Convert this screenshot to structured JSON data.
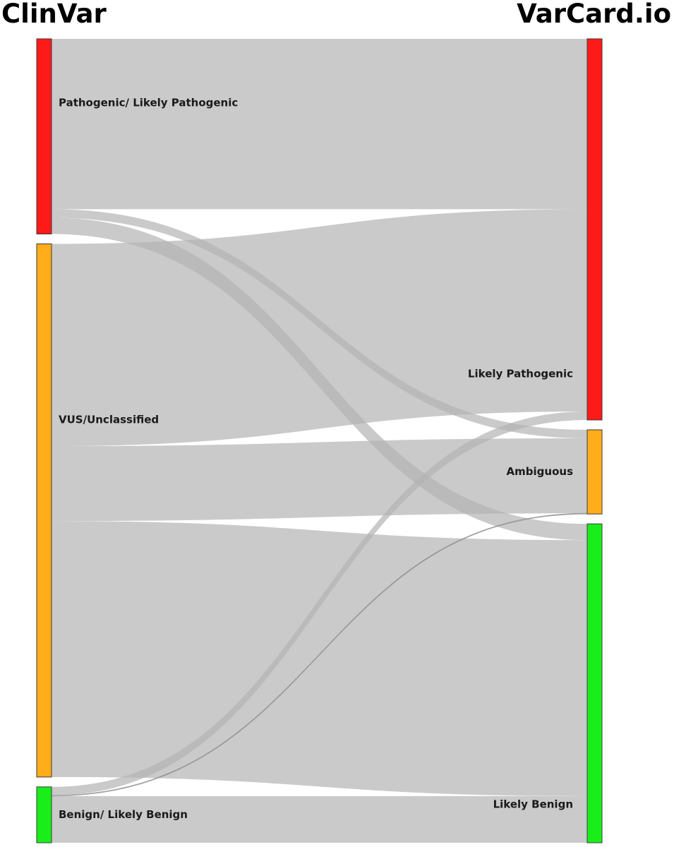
{
  "headers": {
    "left": "ClinVar",
    "right": "VarCard.io"
  },
  "colors": {
    "pathogenic": "#ff1a1a",
    "ambiguous": "#ffad1a",
    "benign": "#1aee1a",
    "link": "#b3b3b3"
  },
  "chart_data": {
    "type": "sankey",
    "source_nodes": [
      {
        "id": "plp",
        "label": "Pathogenic/ Likely Pathogenic",
        "color": "#ff1a1a"
      },
      {
        "id": "vus",
        "label": "VUS/Unclassified",
        "color": "#ffad1a"
      },
      {
        "id": "blb",
        "label": "Benign/ Likely Benign",
        "color": "#1aee1a"
      }
    ],
    "target_nodes": [
      {
        "id": "lp",
        "label": "Likely Pathogenic",
        "color": "#ff1a1a"
      },
      {
        "id": "amb",
        "label": "Ambiguous",
        "color": "#ffad1a"
      },
      {
        "id": "lb",
        "label": "Likely Benign",
        "color": "#1aee1a"
      }
    ],
    "links": [
      {
        "source": "plp",
        "target": "lp",
        "value": 241
      },
      {
        "source": "plp",
        "target": "amb",
        "value": 12
      },
      {
        "source": "plp",
        "target": "lb",
        "value": 23
      },
      {
        "source": "vus",
        "target": "lp",
        "value": 286
      },
      {
        "source": "vus",
        "target": "amb",
        "value": 106
      },
      {
        "source": "vus",
        "target": "lb",
        "value": 362
      },
      {
        "source": "blb",
        "target": "lp",
        "value": 12
      },
      {
        "source": "blb",
        "target": "amb",
        "value": 1
      },
      {
        "source": "blb",
        "target": "lb",
        "value": 66
      }
    ]
  }
}
